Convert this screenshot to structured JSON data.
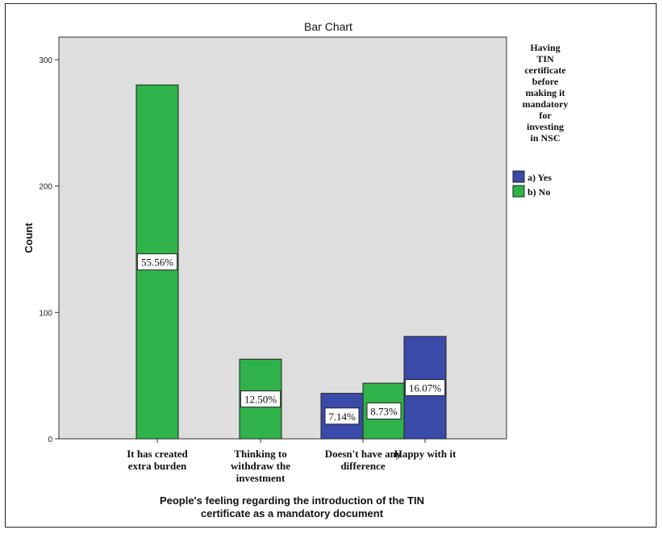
{
  "chart_data": {
    "type": "bar",
    "title": "Bar Chart",
    "xlabel": "People's feeling regarding the introduction of the TIN certificate as a mandatory document",
    "ylabel": "Count",
    "ylim": [
      0,
      300
    ],
    "yticks": [
      0,
      100,
      200,
      300
    ],
    "grid": false,
    "legend_position": "right",
    "legend_title": "Having TIN certificate before making it mandatory for investing in NSC",
    "categories": [
      [
        "It has created",
        "extra burden"
      ],
      [
        "Thinking to",
        "withdraw the",
        "investment"
      ],
      [
        "Doesn't have any",
        "difference"
      ],
      [
        "Happy with it"
      ]
    ],
    "series": [
      {
        "name": "a) Yes",
        "color": "#3a4aa8",
        "values": [
          null,
          null,
          36,
          81
        ],
        "labels": [
          null,
          null,
          "7.14%",
          "16.07%"
        ]
      },
      {
        "name": "b) No",
        "color": "#2fb24a",
        "values": [
          280,
          63,
          44,
          null
        ],
        "labels": [
          "55.56%",
          "12.50%",
          "8.73%",
          null
        ]
      }
    ],
    "plot_background": "#dedede"
  }
}
